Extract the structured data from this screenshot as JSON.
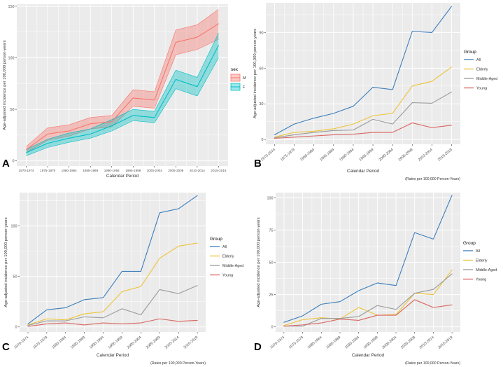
{
  "figure": {
    "background": "#ffffff",
    "panel_background": "#EBEBEB",
    "gridline_color": "#FFFFFF",
    "tick_text_color": "#4D4D4D",
    "axis_title_color": "#333333"
  },
  "chart_data": [
    {
      "panel_letter": "A",
      "type": "line",
      "title": "",
      "ylabel": "Age-adjusted incidence per 100,000 person-years",
      "xlabel": "Calendar Period",
      "caption": "",
      "legend_title": "sex",
      "legend_style": "ribbon",
      "legend_position": "right",
      "grid": true,
      "x_tick_rotation": 0,
      "categories": [
        "1970-1974",
        "1975-1979",
        "1980-1984",
        "1985-1989",
        "1990-1994",
        "1995-1999",
        "2000-2004",
        "2005-2009",
        "2010-2014",
        "2015-2019"
      ],
      "ylim": [
        -5,
        152
      ],
      "yticks": [
        0,
        50,
        100,
        150
      ],
      "yticks_minor": [
        25,
        75,
        125
      ],
      "series": [
        {
          "name": "M",
          "color": "#F8766D",
          "fill": "rgba(248,118,109,0.38)",
          "values": [
            11,
            26,
            29,
            36,
            38,
            61,
            59,
            115,
            120,
            133
          ],
          "lower": [
            8,
            20,
            24,
            31,
            33,
            53,
            51,
            103,
            108,
            118
          ],
          "upper": [
            14,
            32,
            35,
            42,
            44,
            69,
            67,
            127,
            132,
            147
          ]
        },
        {
          "name": "F",
          "color": "#00BFC4",
          "fill": "rgba(0,191,196,0.38)",
          "values": [
            8,
            17,
            22,
            26,
            34,
            44,
            42,
            79,
            72,
            112
          ],
          "lower": [
            5,
            13,
            18,
            22,
            29,
            39,
            37,
            70,
            63,
            100
          ],
          "upper": [
            11,
            21,
            27,
            31,
            40,
            50,
            48,
            88,
            81,
            124
          ]
        }
      ]
    },
    {
      "panel_letter": "B",
      "type": "line",
      "title": "",
      "ylabel": "Age-adjusted incidence per 100,000 person-years",
      "xlabel": "Calendar Period",
      "caption": "(Rates per 100,000 Person-Years)",
      "legend_title": "Group",
      "legend_style": "line",
      "legend_position": "right",
      "grid": true,
      "x_tick_rotation": -40,
      "categories": [
        "1970-1974",
        "1975-1979",
        "1980-1984",
        "1985-1989",
        "1990-1994",
        "1995-1999",
        "2000-2004",
        "2005-2009",
        "2010-2014",
        "2015-2019"
      ],
      "ylim": [
        -4,
        115
      ],
      "yticks": [
        0,
        30,
        60,
        90
      ],
      "yticks_minor": [
        15,
        45,
        75,
        105
      ],
      "series": [
        {
          "name": "All",
          "color": "#3B7EBB",
          "values": [
            4,
            13,
            18,
            22,
            28,
            44,
            42,
            91,
            90,
            112
          ]
        },
        {
          "name": "Elderly",
          "color": "#EDC437",
          "values": [
            2,
            6,
            7,
            9,
            13,
            20,
            22,
            45,
            49,
            61
          ]
        },
        {
          "name": "Middle-Aged",
          "color": "#9A9A9A",
          "values": [
            1.5,
            4,
            6,
            7.5,
            8,
            17,
            13,
            31,
            30.5,
            40
          ]
        },
        {
          "name": "Young",
          "color": "#D9655F",
          "values": [
            1,
            2,
            3,
            4,
            4.5,
            6,
            6,
            14,
            10,
            12
          ]
        }
      ]
    },
    {
      "panel_letter": "C",
      "type": "line",
      "title": "",
      "ylabel": "Age-adjusted incidence per 100,000 person-years",
      "xlabel": "Calendar Period",
      "caption": "(Rates per 100,000 Person-Years)",
      "legend_title": "Group",
      "legend_style": "line",
      "legend_position": "right",
      "grid": true,
      "x_tick_rotation": -40,
      "categories": [
        "1970-1974",
        "1975-1979",
        "1980-1984",
        "1985-1989",
        "1990-1994",
        "1995-1999",
        "2000-2004",
        "2005-2009",
        "2010-2014",
        "2015-2019"
      ],
      "ylim": [
        -5,
        133
      ],
      "yticks": [
        0,
        50,
        100
      ],
      "yticks_minor": [
        25,
        75,
        125
      ],
      "series": [
        {
          "name": "All",
          "color": "#3B7EBB",
          "values": [
            3,
            17,
            19,
            27,
            29,
            55,
            55,
            113,
            117,
            130
          ]
        },
        {
          "name": "Elderly",
          "color": "#EDC437",
          "values": [
            2,
            8,
            7,
            13,
            15,
            35,
            40,
            68,
            80,
            83
          ]
        },
        {
          "name": "Middle-Aged",
          "color": "#9A9A9A",
          "values": [
            1.5,
            6,
            6,
            10,
            9,
            18,
            12,
            37,
            33,
            41
          ]
        },
        {
          "name": "Young",
          "color": "#D9655F",
          "values": [
            0.5,
            3,
            4,
            2,
            4,
            3,
            4,
            8,
            5.5,
            6.5
          ]
        }
      ]
    },
    {
      "panel_letter": "D",
      "type": "line",
      "title": "",
      "ylabel": "Age-adjusted incidence per 100,000 person-years",
      "xlabel": "Calendar Period",
      "caption": "(Rates per 100,000 Person-Years)",
      "legend_title": "Group",
      "legend_style": "line",
      "legend_position": "right",
      "grid": true,
      "x_tick_rotation": -40,
      "categories": [
        "1970-1974",
        "1975-1979",
        "1980-1984",
        "1985-1989",
        "1990-1994",
        "1995-1999",
        "2000-2004",
        "2005-2009",
        "2010-2014",
        "2015-2019"
      ],
      "ylim": [
        -4,
        104
      ],
      "yticks": [
        0,
        25,
        50,
        75,
        100
      ],
      "yticks_minor": [
        12.5,
        37.5,
        62.5,
        87.5
      ],
      "series": [
        {
          "name": "All",
          "color": "#3B7EBB",
          "values": [
            3.5,
            8.5,
            17.5,
            19.5,
            28,
            34,
            32,
            73,
            68,
            102
          ]
        },
        {
          "name": "Elderly",
          "color": "#EDC437",
          "values": [
            1,
            5.5,
            7,
            6,
            15,
            9,
            9.5,
            26,
            25,
            44
          ]
        },
        {
          "name": "Middle-Aged",
          "color": "#9A9A9A",
          "values": [
            0.5,
            0.5,
            6.5,
            6.5,
            8,
            16.5,
            13.5,
            26,
            29,
            41
          ]
        },
        {
          "name": "Young",
          "color": "#D9655F",
          "values": [
            0.5,
            1.5,
            3,
            6,
            5,
            9,
            9,
            21,
            15,
            17
          ]
        }
      ]
    }
  ]
}
